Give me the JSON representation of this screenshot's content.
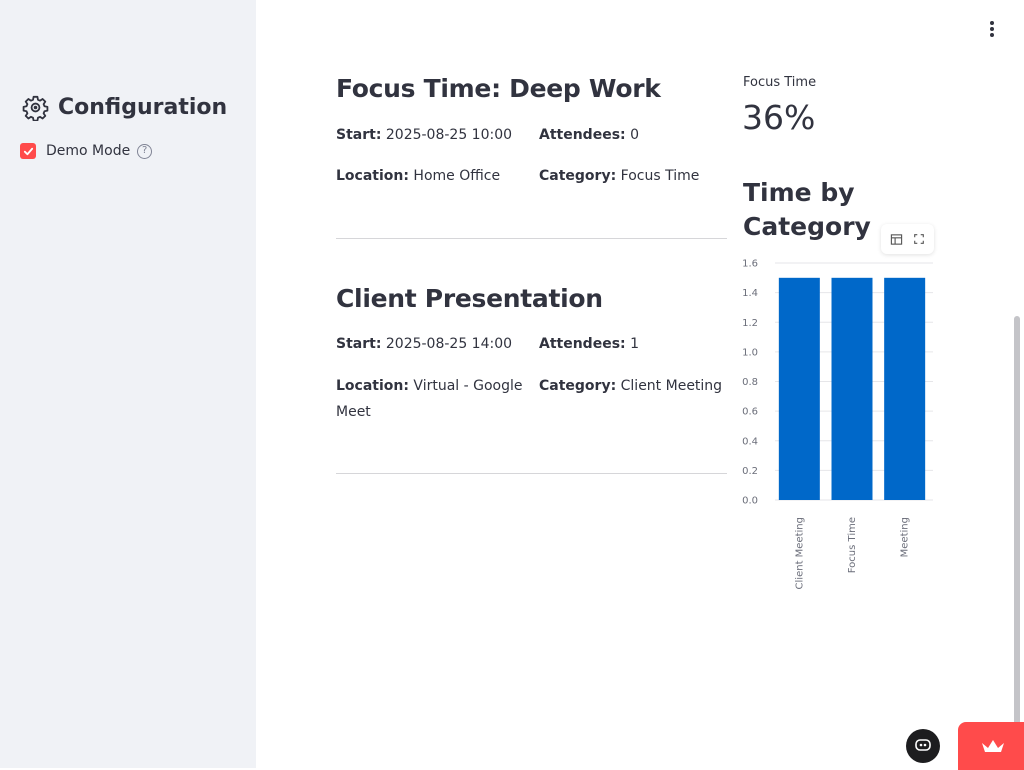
{
  "sidebar": {
    "title": "Configuration",
    "demo_mode": {
      "label": "Demo Mode",
      "checked": true,
      "help_icon": "?"
    }
  },
  "events": [
    {
      "title": "Focus Time: Deep Work",
      "start_label": "Start:",
      "start": "2025-08-25 10:00",
      "attendees_label": "Attendees:",
      "attendees": "0",
      "location_label": "Location:",
      "location": "Home Office",
      "category_label": "Category:",
      "category": "Focus Time"
    },
    {
      "title": "Client Presentation",
      "start_label": "Start:",
      "start": "2025-08-25 14:00",
      "attendees_label": "Attendees:",
      "attendees": "1",
      "location_label": "Location:",
      "location": "Virtual - Google Meet",
      "category_label": "Category:",
      "category": "Client Meeting"
    }
  ],
  "metric": {
    "label": "Focus Time",
    "value": "36%"
  },
  "chart_section": {
    "title": "Time by Category"
  },
  "chart_data": {
    "type": "bar",
    "categories": [
      "Client Meeting",
      "Focus Time",
      "Meeting"
    ],
    "values": [
      1.5,
      1.5,
      1.5
    ],
    "yticks": [
      "0.0",
      "0.2",
      "0.4",
      "0.6",
      "0.8",
      "1.0",
      "1.2",
      "1.4",
      "1.6"
    ],
    "ylim": [
      0,
      1.6
    ],
    "bar_color": "#0068c9",
    "grid": true
  },
  "colors": {
    "accent": "#ff4b4b",
    "text": "#31333f",
    "sidebar_bg": "#f0f2f6"
  },
  "icons": {
    "menu": "kebab-menu-icon",
    "table": "table-icon",
    "fullscreen": "fullscreen-icon",
    "settings": "gear-icon"
  }
}
